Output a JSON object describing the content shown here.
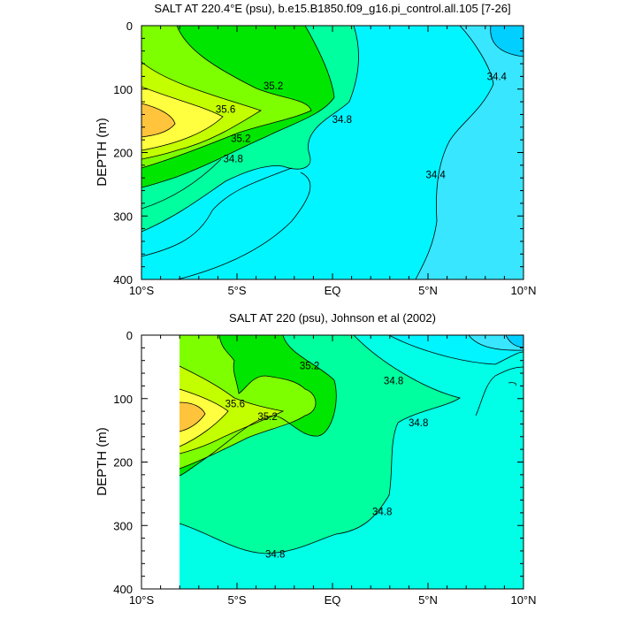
{
  "chart_data": [
    {
      "type": "contour",
      "title": "SALT AT 220.4°E (psu), b.e15.B1850.f09_g16.pi_control.all.105 [7-26]",
      "ylabel": "DEPTH (m)",
      "xlabel": "",
      "xlim": [
        -10,
        10
      ],
      "ylim": [
        400,
        0
      ],
      "x_ticks": [
        {
          "value": -10,
          "label": "10°S"
        },
        {
          "value": -5,
          "label": "5°S"
        },
        {
          "value": 0,
          "label": "EQ"
        },
        {
          "value": 5,
          "label": "5°N"
        },
        {
          "value": 10,
          "label": "10°N"
        }
      ],
      "y_ticks": [
        0,
        100,
        200,
        300,
        400
      ],
      "levels": [
        34.4,
        34.8,
        35.2,
        35.6
      ],
      "colors": {
        "below_34.2": "#00cfff",
        "34.2_34.4": "#38e6ff",
        "34.4_34.6": "#00f5ff",
        "34.6_34.8": "#00ffe6",
        "34.8_35.0": "#00ff9e",
        "35.0_35.2": "#00e600",
        "35.2_35.4": "#7dff00",
        "35.4_35.6": "#c4ff00",
        "35.6_35.8": "#ffff40",
        "above_35.8": "#ffc43b"
      },
      "contour_labels": [
        {
          "text": "35.2",
          "x": -3.1,
          "depth": 95
        },
        {
          "text": "35.6",
          "x": -5.6,
          "depth": 132
        },
        {
          "text": "35.2",
          "x": -4.8,
          "depth": 178
        },
        {
          "text": "34.8",
          "x": -5.2,
          "depth": 210
        },
        {
          "text": "34.8",
          "x": 0.5,
          "depth": 148
        },
        {
          "text": "34.4",
          "x": 8.6,
          "depth": 80
        },
        {
          "text": "34.4",
          "x": 5.4,
          "depth": 235
        }
      ]
    },
    {
      "type": "contour",
      "title": "SALT AT 220 (psu), Johnson et al (2002)",
      "ylabel": "DEPTH (m)",
      "xlabel": "",
      "xlim": [
        -10,
        10
      ],
      "ylim": [
        400,
        0
      ],
      "data_extent_x": [
        -8,
        10
      ],
      "x_ticks": [
        {
          "value": -10,
          "label": "10°S"
        },
        {
          "value": -5,
          "label": "5°S"
        },
        {
          "value": 0,
          "label": "EQ"
        },
        {
          "value": 5,
          "label": "5°N"
        },
        {
          "value": 10,
          "label": "10°N"
        }
      ],
      "y_ticks": [
        0,
        100,
        200,
        300,
        400
      ],
      "levels": [
        34.8,
        35.2,
        35.6
      ],
      "colors": {
        "34.2_34.4": "#38e6ff",
        "34.4_34.6": "#00f5ff",
        "34.6_34.8": "#00ffe6",
        "34.8_35.0": "#00ff9e",
        "35.0_35.2": "#00e600",
        "35.2_35.4": "#7dff00",
        "35.4_35.6": "#c4ff00",
        "35.6_35.8": "#ffff40",
        "above_35.8": "#ffc43b"
      },
      "contour_labels": [
        {
          "text": "35.2",
          "x": -1.2,
          "depth": 48
        },
        {
          "text": "35.6",
          "x": -5.1,
          "depth": 108
        },
        {
          "text": "35.2",
          "x": -3.4,
          "depth": 128
        },
        {
          "text": "34.8",
          "x": 3.2,
          "depth": 72
        },
        {
          "text": "34.8",
          "x": 4.5,
          "depth": 138
        },
        {
          "text": "34.8",
          "x": 2.6,
          "depth": 278
        },
        {
          "text": "34.8",
          "x": -3.0,
          "depth": 345
        }
      ]
    }
  ]
}
